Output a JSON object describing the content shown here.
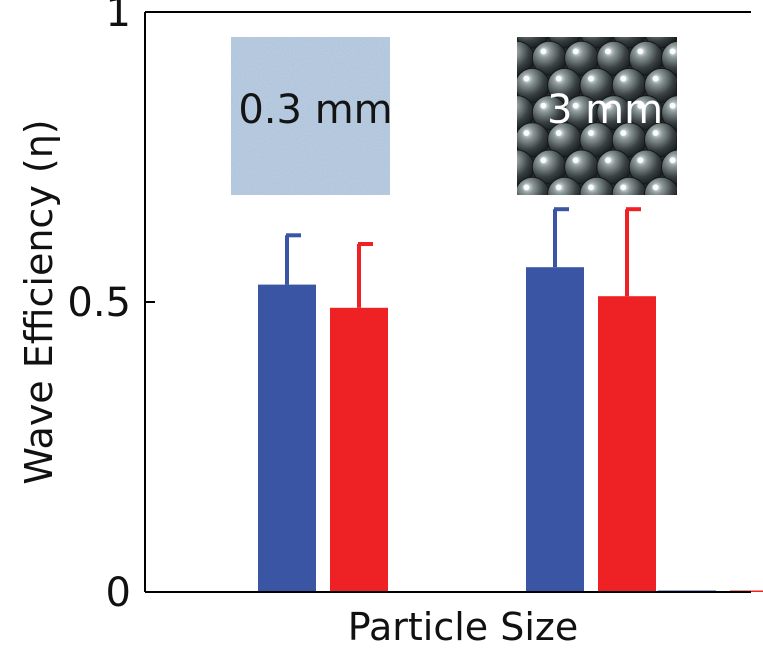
{
  "chart_data": {
    "type": "bar",
    "title": "",
    "xlabel": "Particle Size",
    "ylabel": "Wave Efficiency (η)",
    "ylim": [
      0,
      1
    ],
    "yticks": [
      "0",
      "0.5",
      "1"
    ],
    "grid": false,
    "legend": "none",
    "groups": [
      {
        "label": "0.3 mm",
        "inset": "fine-sand-texture",
        "bars": [
          {
            "value": 0.53,
            "error": 0.085,
            "color": "#3A55A4"
          },
          {
            "value": 0.49,
            "error": 0.11,
            "color": "#EE2224"
          }
        ]
      },
      {
        "label": "3 mm",
        "inset": "glass-beads-texture",
        "bars": [
          {
            "value": 0.56,
            "error": 0.1,
            "color": "#3A55A4"
          },
          {
            "value": 0.51,
            "error": 0.15,
            "color": "#EE2224"
          }
        ]
      },
      {
        "label": "",
        "bars": [
          {
            "value": 0,
            "error": 0,
            "color": "#3A55A4"
          },
          {
            "value": 0,
            "error": 0,
            "color": "#EE2224"
          }
        ]
      }
    ]
  }
}
